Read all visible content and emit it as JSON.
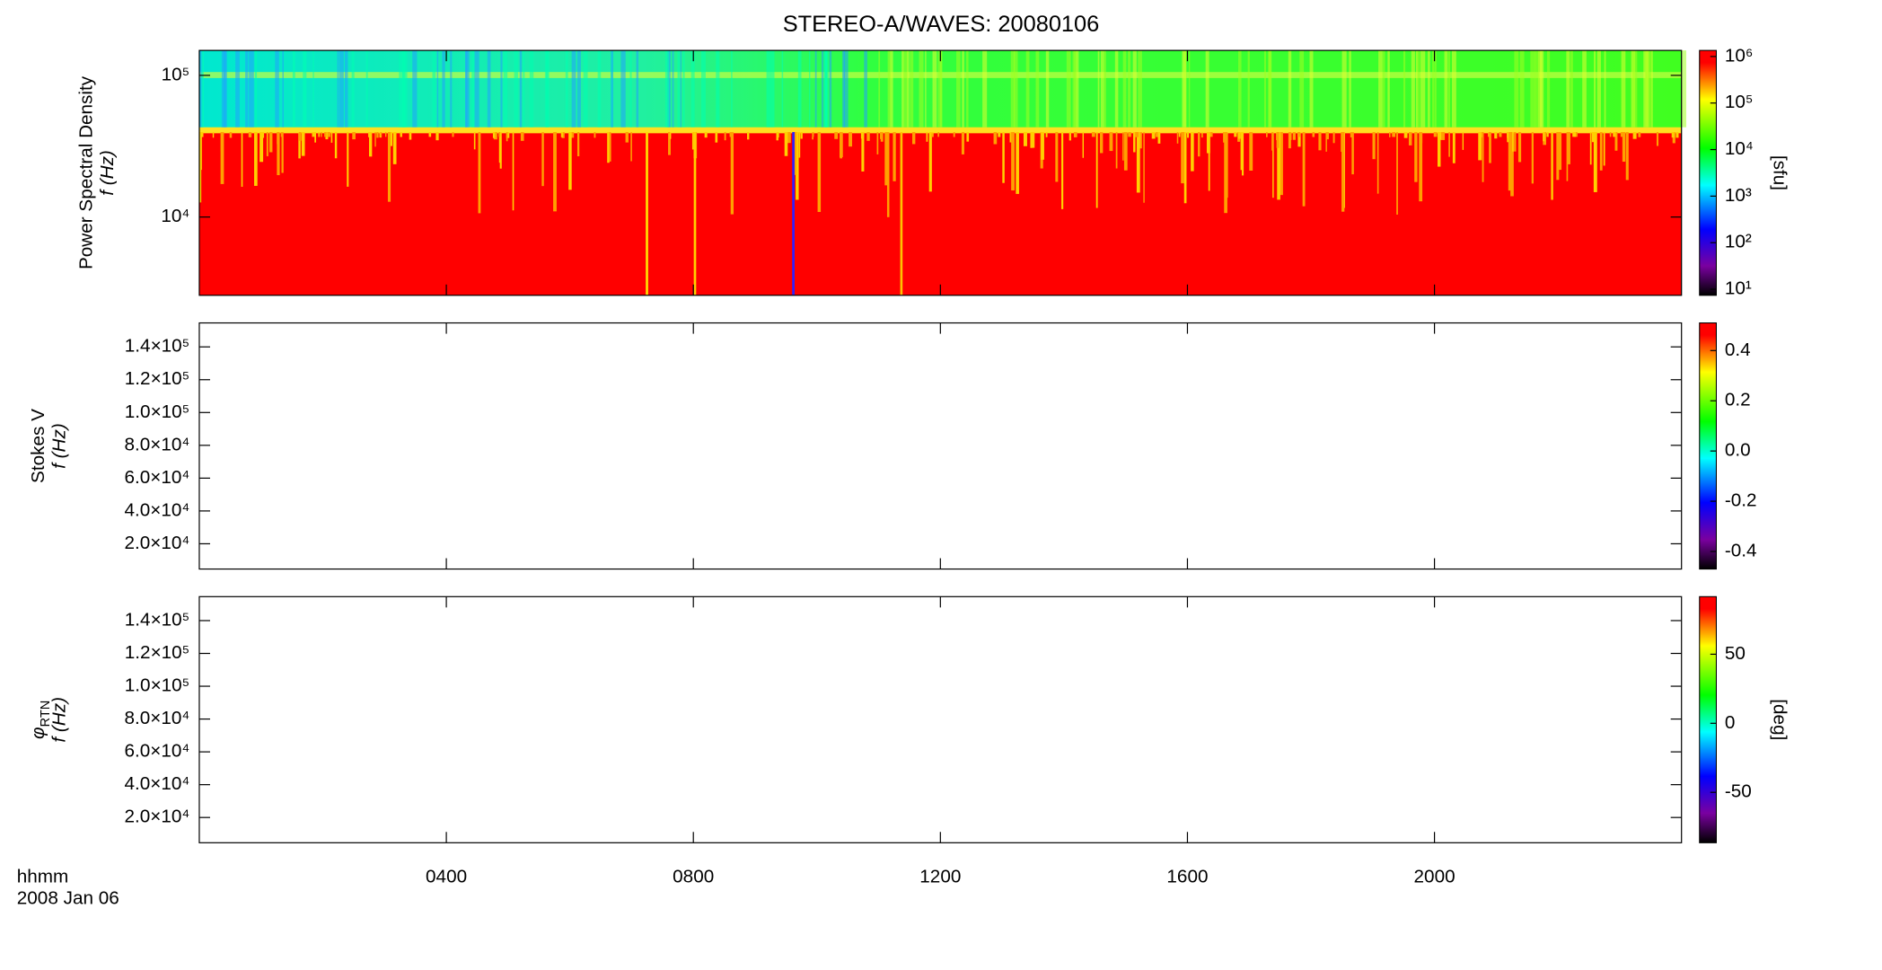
{
  "chart_data": {
    "type": "spectrogram",
    "title": "STEREO-A/WAVES: 20080106",
    "xlabel": "hhmm",
    "date": "2008 Jan 06",
    "xlim": [
      0,
      24
    ],
    "xticks": [
      {
        "value": 4,
        "label": "0400"
      },
      {
        "value": 8,
        "label": "0800"
      },
      {
        "value": 12,
        "label": "1200"
      },
      {
        "value": 16,
        "label": "1600"
      },
      {
        "value": 20,
        "label": "2000"
      }
    ],
    "panels": [
      {
        "ylabel": "Power Spectral Density",
        "ylabel2": "f (Hz)",
        "ylog": true,
        "ylim": [
          2800,
          150000
        ],
        "yticks": [
          {
            "value": 10000,
            "label": "10⁴"
          },
          {
            "value": 100000,
            "label": "10⁵"
          }
        ],
        "colorbar": {
          "label": "[sfu]",
          "log": true,
          "lim": [
            7.4,
            1350000
          ],
          "ticks": [
            {
              "value": 10,
              "label": "10¹"
            },
            {
              "value": 100,
              "label": "10²"
            },
            {
              "value": 1000,
              "label": "10³"
            },
            {
              "value": 10000,
              "label": "10⁴"
            },
            {
              "value": 100000,
              "label": "10⁵"
            },
            {
              "value": 1000000,
              "label": "10⁶"
            }
          ]
        }
      },
      {
        "ylabel": "Stokes V",
        "ylabel2": "f (Hz)",
        "ylog": false,
        "ylim": [
          4600,
          154600
        ],
        "yticks": [
          {
            "value": 20000,
            "label": "2.0×10⁴"
          },
          {
            "value": 40000,
            "label": "4.0×10⁴"
          },
          {
            "value": 60000,
            "label": "6.0×10⁴"
          },
          {
            "value": 80000,
            "label": "8.0×10⁴"
          },
          {
            "value": 100000,
            "label": "1.0×10⁵"
          },
          {
            "value": 120000,
            "label": "1.2×10⁵"
          },
          {
            "value": 140000,
            "label": "1.4×10⁵"
          }
        ],
        "colorbar": {
          "log": false,
          "lim": [
            -0.47,
            0.51
          ],
          "ticks": [
            0.4,
            0.2,
            {
              "value": 0,
              "label": "0.0"
            },
            -0.2,
            -0.4
          ]
        }
      },
      {
        "ylabel": "φ",
        "ylabel_sub": "RTN",
        "ylabel2": "f (Hz)",
        "ylog": false,
        "ylim": [
          4600,
          154600
        ],
        "yticks": [
          {
            "value": 20000,
            "label": "2.0×10⁴"
          },
          {
            "value": 40000,
            "label": "4.0×10⁴"
          },
          {
            "value": 60000,
            "label": "6.0×10⁴"
          },
          {
            "value": 80000,
            "label": "8.0×10⁴"
          },
          {
            "value": 100000,
            "label": "1.0×10⁵"
          },
          {
            "value": 120000,
            "label": "1.2×10⁵"
          },
          {
            "value": 140000,
            "label": "1.4×10⁵"
          }
        ],
        "colorbar": {
          "label": "[deg]",
          "log": false,
          "lim": [
            -86.5,
            91.7
          ],
          "ticks": [
            50,
            0,
            -50
          ]
        }
      }
    ]
  }
}
